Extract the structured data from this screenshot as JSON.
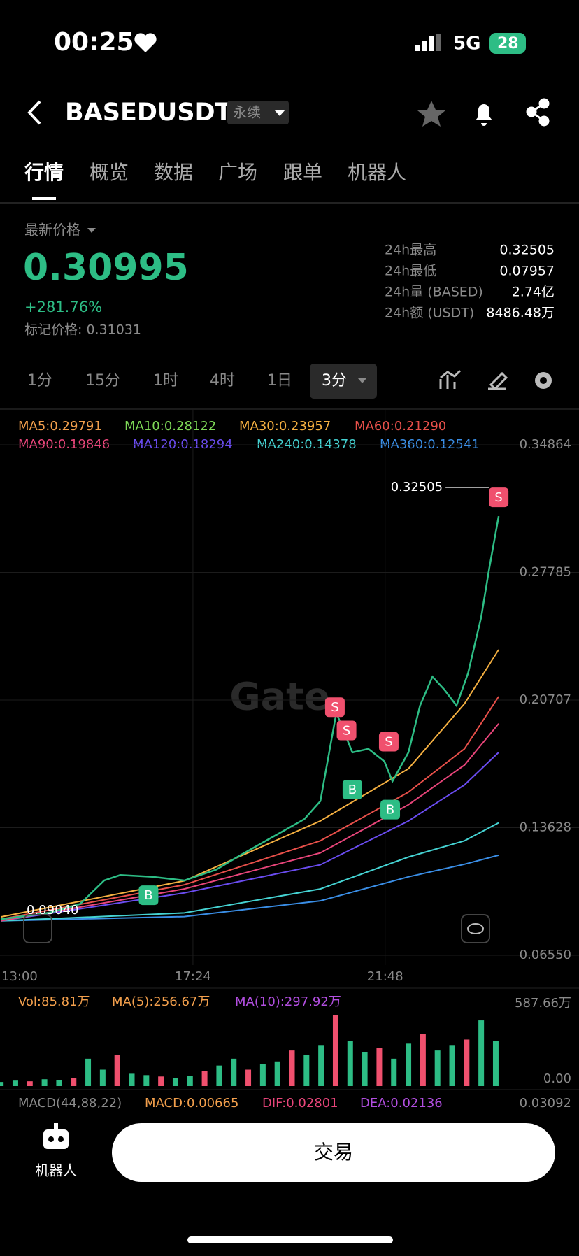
{
  "status_bar": {
    "time": "00:25",
    "network": "5G",
    "battery": "28"
  },
  "header": {
    "title": "BASEDUSDT",
    "badge": "永续"
  },
  "tabs": [
    "行情",
    "概览",
    "数据",
    "广场",
    "跟单",
    "机器人"
  ],
  "price": {
    "label": "最新价格",
    "last": "0.30995",
    "change": "+281.76%",
    "mark": "标记价格: 0.31031"
  },
  "stats": [
    {
      "label": "24h最高",
      "value": "0.32505"
    },
    {
      "label": "24h最低",
      "value": "0.07957"
    },
    {
      "label": "24h量 (BASED)",
      "value": "2.74亿"
    },
    {
      "label": "24h额 (USDT)",
      "value": "8486.48万"
    }
  ],
  "intervals": [
    "1分",
    "15分",
    "1时",
    "4时",
    "1日"
  ],
  "active_interval": "3分",
  "watermark": "Gate",
  "chart_data": [
    {
      "type": "line",
      "legend": [
        {
          "text": "MA5:0.29791",
          "color": "#f29f4c"
        },
        {
          "text": "MA10:0.28122",
          "color": "#7ed957"
        },
        {
          "text": "MA30:0.23957",
          "color": "#f5b041"
        },
        {
          "text": "MA60:0.21290",
          "color": "#e8504a"
        },
        {
          "text": "MA90:0.19846",
          "color": "#e8457a"
        },
        {
          "text": "MA120:0.18294",
          "color": "#6a4cf0"
        },
        {
          "text": "MA240:0.14378",
          "color": "#45d3d3"
        },
        {
          "text": "MA360:0.12541",
          "color": "#3a8ee6"
        }
      ],
      "ylim": [
        0.0655,
        0.34864
      ],
      "yticks": [
        0.34864,
        0.27785,
        0.20707,
        0.13628,
        {
          "value": 0.0655,
          "label": "0.06550"
        }
      ],
      "xticks": [
        "13:00",
        "17:24",
        "21:48"
      ],
      "grid": true,
      "series": [
        {
          "color": "#2dbd85",
          "x": [
            "13:00",
            "14:06",
            "14:49",
            "15:22",
            "15:44",
            "16:28",
            "17:12",
            "17:56",
            "18:29",
            "19:13",
            "19:57",
            "20:19",
            "20:41",
            "21:03",
            "21:25",
            "21:47",
            "21:58",
            "22:20",
            "22:36",
            "22:53",
            "23:09",
            "23:26",
            "23:42",
            "00:00",
            "00:11",
            "00:24"
          ],
          "values": [
            0.0855,
            0.089,
            0.094,
            0.107,
            0.11,
            0.109,
            0.107,
            0.113,
            0.121,
            0.131,
            0.141,
            0.151,
            0.2,
            0.178,
            0.18,
            0.173,
            0.162,
            0.178,
            0.204,
            0.22,
            0.213,
            0.204,
            0.222,
            0.253,
            0.28,
            0.309
          ]
        },
        {
          "color": "#f5b041",
          "x": [
            "13:00",
            "17:12",
            "20:19",
            "22:20",
            "23:37",
            "00:24"
          ],
          "values": [
            0.0868,
            0.1068,
            0.14,
            0.169,
            0.205,
            0.235
          ]
        },
        {
          "color": "#e8504a",
          "x": [
            "13:00",
            "17:12",
            "20:19",
            "22:20",
            "23:37",
            "00:24"
          ],
          "values": [
            0.0855,
            0.1046,
            0.129,
            0.156,
            0.18,
            0.209
          ]
        },
        {
          "color": "#e8457a",
          "x": [
            "13:00",
            "17:12",
            "20:19",
            "22:20",
            "23:37",
            "00:24"
          ],
          "values": [
            0.0846,
            0.1023,
            0.1223,
            0.149,
            0.171,
            0.194
          ]
        },
        {
          "color": "#6a4cf0",
          "x": [
            "13:00",
            "17:12",
            "20:19",
            "22:20",
            "23:37",
            "00:24"
          ],
          "values": [
            0.0846,
            0.1001,
            0.1157,
            0.14,
            0.16,
            0.178
          ]
        },
        {
          "color": "#45d3d3",
          "x": [
            "13:00",
            "17:12",
            "20:19",
            "22:20",
            "23:37",
            "00:24"
          ],
          "values": [
            0.0846,
            0.089,
            0.1023,
            0.12,
            0.129,
            0.139
          ]
        },
        {
          "color": "#3a8ee6",
          "x": [
            "13:00",
            "17:12",
            "20:19",
            "22:20",
            "23:37",
            "00:24"
          ],
          "values": [
            0.0846,
            0.087,
            0.0957,
            0.109,
            0.116,
            0.121
          ]
        }
      ],
      "signals": [
        {
          "label": "S",
          "x": "20:39",
          "value": 0.2031,
          "color": "#f0506e"
        },
        {
          "label": "S",
          "x": "20:55",
          "value": 0.1902,
          "color": "#f0506e"
        },
        {
          "label": "S",
          "x": "21:53",
          "value": 0.184,
          "color": "#f0506e"
        },
        {
          "label": "S",
          "x": "00:24",
          "value": 0.3195,
          "color": "#f0506e"
        },
        {
          "label": "B",
          "x": "16:23",
          "value": 0.0988,
          "color": "#2dbd85"
        },
        {
          "label": "B",
          "x": "21:03",
          "value": 0.1574,
          "color": "#2dbd85"
        },
        {
          "label": "B",
          "x": "21:55",
          "value": 0.1463,
          "color": "#2dbd85"
        }
      ],
      "high_label": {
        "value": 0.32505,
        "label": "0.32505"
      },
      "low_label": {
        "value": 0.0904,
        "label": "0.09040"
      }
    },
    {
      "type": "bar",
      "legend": [
        {
          "text": "Vol:85.81万",
          "color": "#f29f4c"
        },
        {
          "text": "MA(5):256.67万",
          "color": "#f29f4c"
        },
        {
          "text": "MA(10):297.92万",
          "color": "#b24ee0"
        }
      ],
      "ylim": [
        0,
        587.66
      ],
      "yticks": [
        {
          "value": 587.66,
          "label": "587.66万"
        },
        {
          "value": 0,
          "label": "0.00"
        }
      ],
      "color": "#2dbd85",
      "x": [
        "13:00",
        "13:20",
        "13:40",
        "14:00",
        "14:20",
        "14:40",
        "15:00",
        "15:20",
        "15:40",
        "16:00",
        "16:20",
        "16:40",
        "17:00",
        "17:20",
        "17:40",
        "18:00",
        "18:20",
        "18:40",
        "19:00",
        "19:20",
        "19:40",
        "20:00",
        "20:20",
        "20:40",
        "21:00",
        "21:20",
        "21:40",
        "22:00",
        "22:20",
        "22:40",
        "23:00",
        "23:20",
        "23:40",
        "00:00",
        "00:20"
      ],
      "values": [
        30,
        40,
        35,
        50,
        45,
        60,
        200,
        120,
        230,
        90,
        80,
        70,
        60,
        75,
        110,
        150,
        200,
        120,
        160,
        180,
        260,
        230,
        300,
        520,
        330,
        250,
        280,
        200,
        310,
        380,
        260,
        300,
        340,
        480,
        330
      ]
    }
  ],
  "macd": [
    {
      "text": "MACD(44,88,22)",
      "color": "#8a8a8a"
    },
    {
      "text": "MACD:0.00665",
      "color": "#f29f4c"
    },
    {
      "text": "DIF:0.02801",
      "color": "#e8457a"
    },
    {
      "text": "DEA:0.02136",
      "color": "#b24ee0"
    },
    {
      "text": "0.03092",
      "color": "#8a8a8a"
    }
  ],
  "footer": {
    "bot": "机器人",
    "trade": "交易"
  }
}
